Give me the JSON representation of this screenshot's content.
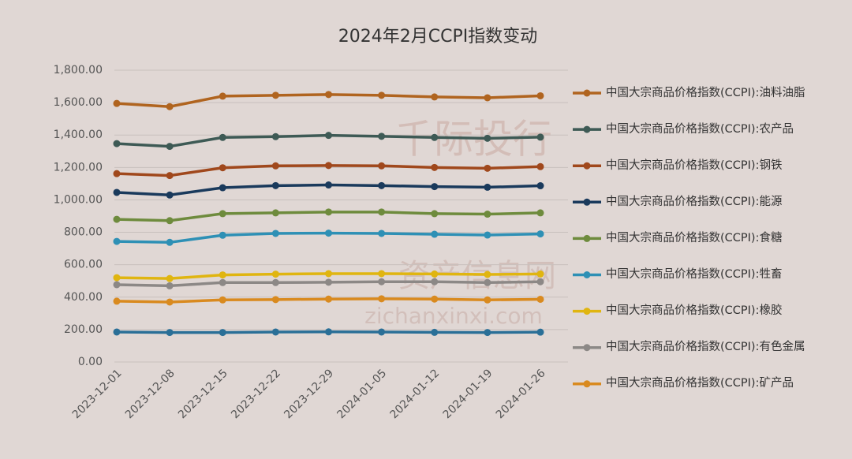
{
  "chart_data": {
    "type": "line",
    "title": "2024年2月CCPI指数变动",
    "watermark": [
      "千际投行",
      "资产信息网",
      "zichanxinxi.com"
    ],
    "categories": [
      "2023-12-01",
      "2023-12-08",
      "2023-12-15",
      "2023-12-22",
      "2023-12-29",
      "2024-01-05",
      "2024-01-12",
      "2024-01-19",
      "2024-01-26"
    ],
    "ylim": [
      0,
      1800
    ],
    "yticks": [
      {
        "value": 0,
        "label": "0.00"
      },
      {
        "value": 200,
        "label": "200.00"
      },
      {
        "value": 400,
        "label": "400.00"
      },
      {
        "value": 600,
        "label": "600.00"
      },
      {
        "value": 800,
        "label": "800.00"
      },
      {
        "value": 1000,
        "label": "1,000.00"
      },
      {
        "value": 1200,
        "label": "1,200.00"
      },
      {
        "value": 1400,
        "label": "1,400.00"
      },
      {
        "value": 1600,
        "label": "1,600.00"
      },
      {
        "value": 1800,
        "label": "1,800.00"
      }
    ],
    "grid": true,
    "series": [
      {
        "name": "中国大宗商品价格指数(CCPI):油料油脂",
        "color": "#b0641f",
        "values": [
          1595,
          1575,
          1640,
          1645,
          1650,
          1645,
          1635,
          1630,
          1642
        ]
      },
      {
        "name": "中国大宗商品价格指数(CCPI):农产品",
        "color": "#3e5a55",
        "values": [
          1347,
          1330,
          1385,
          1390,
          1398,
          1392,
          1385,
          1380,
          1387
        ]
      },
      {
        "name": "中国大宗商品价格指数(CCPI):钢铁",
        "color": "#a0481c",
        "values": [
          1162,
          1150,
          1198,
          1210,
          1212,
          1210,
          1200,
          1195,
          1205
        ]
      },
      {
        "name": "中国大宗商品价格指数(CCPI):能源",
        "color": "#1a3a5c",
        "values": [
          1046,
          1030,
          1075,
          1088,
          1092,
          1088,
          1082,
          1078,
          1087
        ]
      },
      {
        "name": "中国大宗商品价格指数(CCPI):食糖",
        "color": "#6e8b3d",
        "values": [
          880,
          872,
          915,
          920,
          925,
          925,
          915,
          912,
          920
        ]
      },
      {
        "name": "中国大宗商品价格指数(CCPI):牲畜",
        "color": "#2e90b5",
        "values": [
          744,
          738,
          782,
          793,
          795,
          793,
          788,
          783,
          790
        ]
      },
      {
        "name": "中国大宗商品价格指数(CCPI):橡胶",
        "color": "#e0b510",
        "values": [
          520,
          515,
          537,
          542,
          545,
          545,
          543,
          540,
          543
        ]
      },
      {
        "name": "中国大宗商品价格指数(CCPI):有色金属",
        "color": "#8c8886",
        "values": [
          477,
          470,
          490,
          490,
          492,
          495,
          495,
          490,
          495
        ]
      },
      {
        "name": "中国大宗商品价格指数(CCPI):矿产品",
        "color": "#d98a1f",
        "values": [
          375,
          370,
          383,
          385,
          388,
          390,
          388,
          383,
          387
        ]
      },
      {
        "color": "#2a6f97",
        "values": [
          185,
          182,
          182,
          185,
          186,
          185,
          183,
          182,
          184
        ]
      }
    ]
  }
}
